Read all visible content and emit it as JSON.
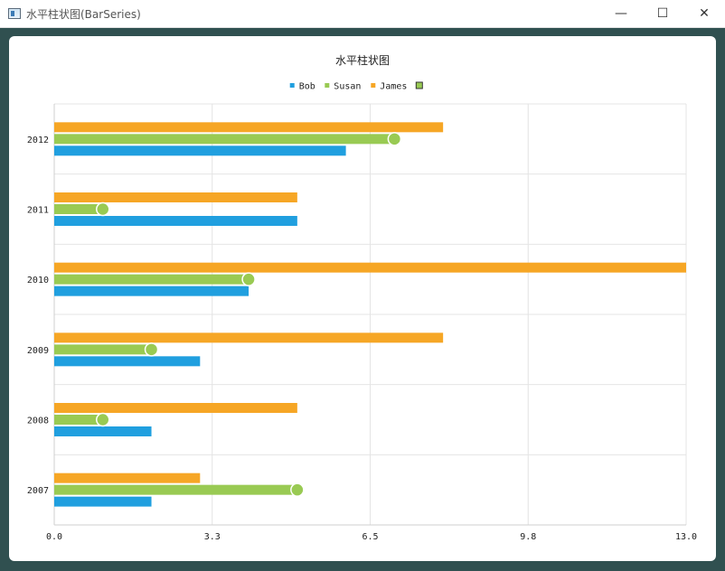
{
  "window": {
    "title": "水平柱状图(BarSeries)",
    "controls": {
      "minimize": "—",
      "maximize": "☐",
      "close": "✕"
    }
  },
  "chart_data": {
    "type": "bar",
    "orientation": "horizontal",
    "title": "水平柱状图",
    "categories": [
      "2007",
      "2008",
      "2009",
      "2010",
      "2011",
      "2012"
    ],
    "series": [
      {
        "name": "Bob",
        "color": "#209fdf",
        "values": [
          2,
          2,
          3,
          4,
          5,
          6
        ]
      },
      {
        "name": "Susan",
        "color": "#99ca53",
        "values": [
          5,
          1,
          2,
          4,
          1,
          7
        ]
      },
      {
        "name": "James",
        "color": "#f6a625",
        "values": [
          3,
          5,
          8,
          13,
          5,
          8
        ]
      }
    ],
    "line_series": {
      "name": "",
      "color": "#99ca53",
      "values": [
        5,
        1,
        2,
        4,
        1,
        7
      ]
    },
    "xlim": [
      0,
      13
    ],
    "xticks": [
      "0.0",
      "3.3",
      "6.5",
      "9.8",
      "13.0"
    ],
    "grid": true,
    "legend": "top-center"
  }
}
